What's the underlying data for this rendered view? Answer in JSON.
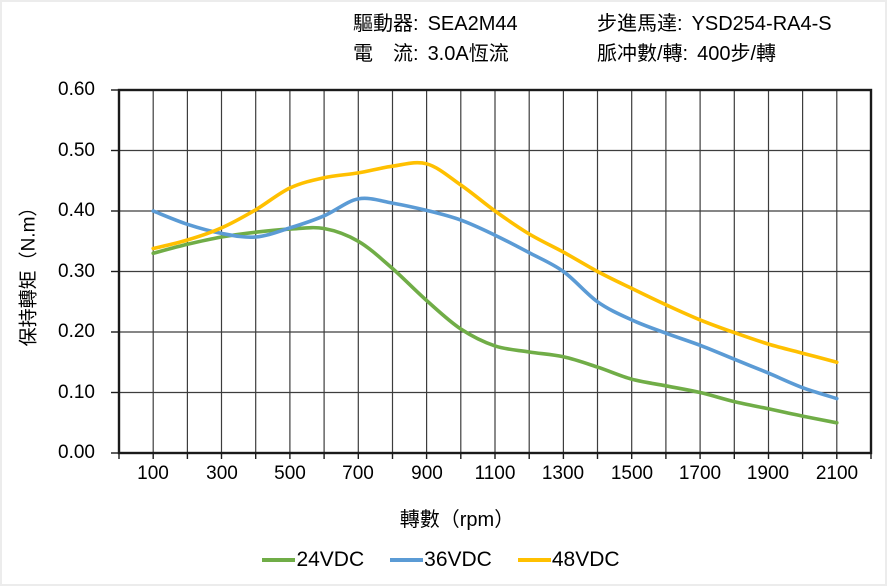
{
  "header": {
    "driver_label": "驅動器:",
    "driver_value": "SEA2M44",
    "current_label": "電　流:",
    "current_value": "3.0A恆流",
    "motor_label": "步進馬達:",
    "motor_value": "YSD254-RA4-S",
    "pulses_label": "脈冲數/轉:",
    "pulses_value": "400步/轉"
  },
  "chart_data": {
    "type": "line",
    "title": "",
    "xlabel": "轉數（rpm）",
    "ylabel": "保持轉矩（N.m）",
    "xlim": [
      0,
      2200
    ],
    "ylim": [
      0,
      0.6
    ],
    "x_grid_step": 100,
    "y_grid_step": 0.1,
    "grid": true,
    "legend_position": "bottom",
    "x_tick_labels": [
      "100",
      "300",
      "500",
      "700",
      "900",
      "1100",
      "1300",
      "1500",
      "1700",
      "1900",
      "2100"
    ],
    "y_tick_labels": [
      "0.00",
      "0.10",
      "0.20",
      "0.30",
      "0.40",
      "0.50",
      "0.60"
    ],
    "x": [
      100,
      200,
      300,
      400,
      500,
      600,
      700,
      800,
      900,
      1000,
      1100,
      1200,
      1300,
      1400,
      1500,
      1600,
      1700,
      1800,
      1900,
      2000,
      2100
    ],
    "series": [
      {
        "name": "24VDC",
        "color": "#70AD47",
        "values": [
          0.33,
          0.345,
          0.357,
          0.365,
          0.37,
          0.371,
          0.35,
          0.305,
          0.252,
          0.205,
          0.177,
          0.167,
          0.159,
          0.142,
          0.122,
          0.111,
          0.1,
          0.085,
          0.073,
          0.061,
          0.05
        ]
      },
      {
        "name": "36VDC",
        "color": "#5B9BD5",
        "values": [
          0.4,
          0.378,
          0.363,
          0.357,
          0.372,
          0.392,
          0.42,
          0.413,
          0.401,
          0.385,
          0.36,
          0.331,
          0.3,
          0.25,
          0.22,
          0.198,
          0.178,
          0.155,
          0.132,
          0.108,
          0.09
        ]
      },
      {
        "name": "48VDC",
        "color": "#FFC000",
        "values": [
          0.338,
          0.352,
          0.372,
          0.402,
          0.438,
          0.455,
          0.463,
          0.474,
          0.478,
          0.443,
          0.4,
          0.362,
          0.332,
          0.3,
          0.272,
          0.245,
          0.22,
          0.199,
          0.18,
          0.165,
          0.15
        ]
      }
    ],
    "style": {
      "grid_color": "#3d3d3d",
      "border_color": "#1a1a1a",
      "text_color": "#000000"
    }
  }
}
